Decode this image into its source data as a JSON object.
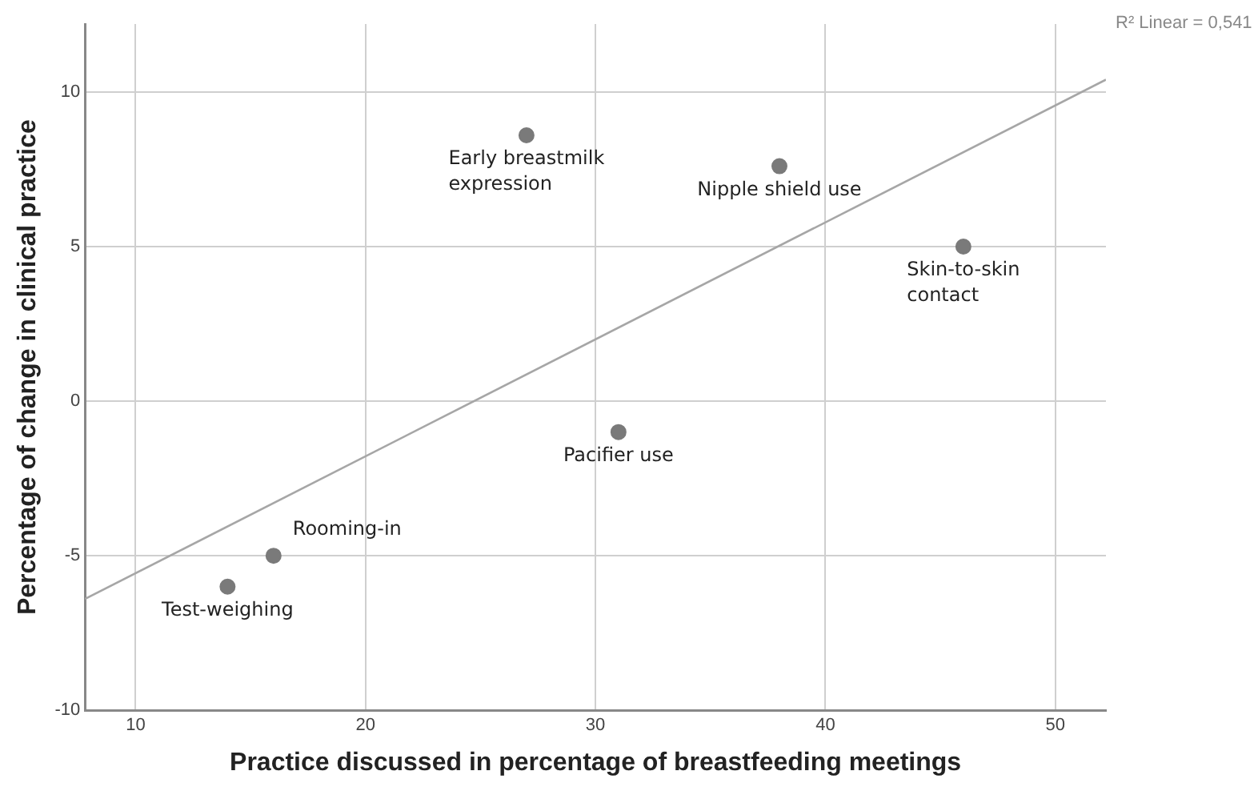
{
  "chart_data": {
    "type": "scatter",
    "xlabel": "Practice discussed in percentage of breastfeeding meetings",
    "ylabel": "Percentage of change in clinical practice",
    "x": [
      14,
      16,
      27,
      31,
      38,
      46
    ],
    "series": [
      {
        "color": "#7a7a7a",
        "values": [
          -6,
          -5,
          8.6,
          -1,
          7.6,
          5
        ]
      },
      {
        "type": "line",
        "marker": "none",
        "color": "#a6a6a6",
        "x": [
          7.8,
          52.2
        ],
        "values": [
          -6.4,
          10.4
        ]
      }
    ],
    "xlim": [
      7.8,
      52.2
    ],
    "xticks": [
      10,
      20,
      30,
      40,
      50
    ],
    "ylim": [
      -10,
      12.2
    ],
    "yticks": [
      -10,
      -5,
      0,
      5,
      10
    ],
    "grid": true,
    "legend": false,
    "marker": "circle",
    "annotations": [
      {
        "text": "Test-weighing",
        "x": 14,
        "y": -6
      },
      {
        "text": "Rooming-in",
        "x": 16,
        "y": -5
      },
      {
        "text": "Early breastmilk expression",
        "x": 27,
        "y": 8.6
      },
      {
        "text": "Pacifier use",
        "x": 31,
        "y": -1
      },
      {
        "text": "Nipple shield use",
        "x": 38,
        "y": 7.6
      },
      {
        "text": "Skin-to-skin contact",
        "x": 46,
        "y": 5
      },
      "R² Linear = 0,541"
    ]
  }
}
